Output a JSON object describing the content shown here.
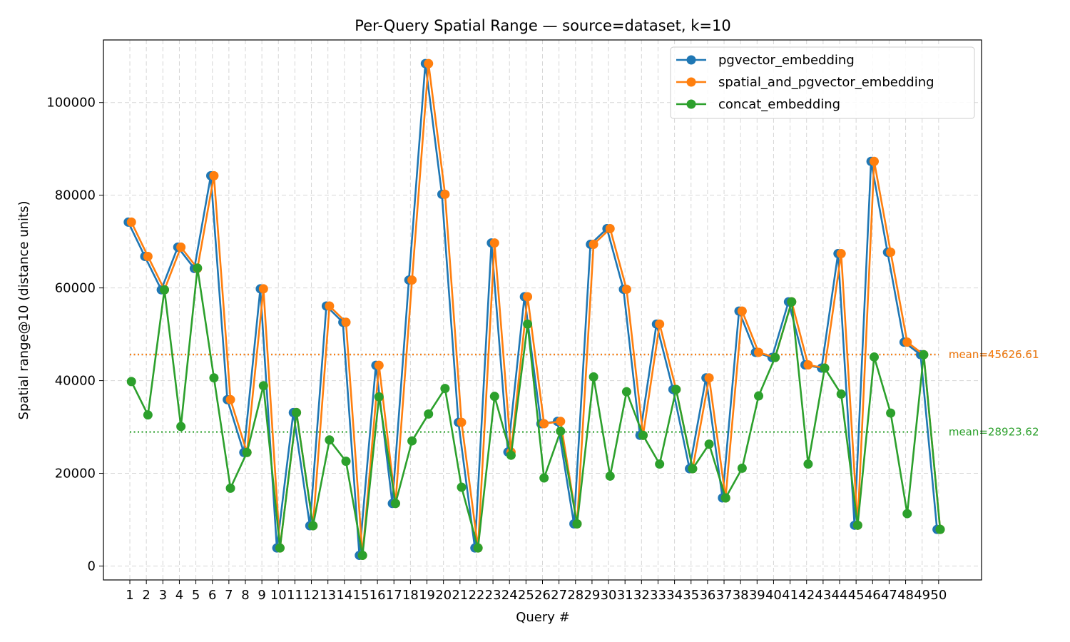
{
  "chart_data": {
    "type": "line",
    "title": "Per-Query Spatial Range — source=dataset, k=10",
    "xlabel": "Query #",
    "ylabel": "Spatial range@10 (distance units)",
    "x": [
      1,
      2,
      3,
      4,
      5,
      6,
      7,
      8,
      9,
      10,
      11,
      12,
      13,
      14,
      15,
      16,
      17,
      18,
      19,
      20,
      21,
      22,
      23,
      24,
      25,
      26,
      27,
      28,
      29,
      30,
      31,
      32,
      33,
      34,
      35,
      36,
      37,
      38,
      39,
      40,
      41,
      42,
      43,
      44,
      45,
      46,
      47,
      48,
      49,
      50
    ],
    "x_tick_labels": [
      "1",
      "2",
      "3",
      "4",
      "5",
      "6",
      "7",
      "8",
      "9",
      "10",
      "11",
      "12",
      "13",
      "14",
      "15",
      "16",
      "17",
      "18",
      "19",
      "20",
      "21",
      "22",
      "23",
      "24",
      "25",
      "26",
      "27",
      "28",
      "29",
      "30",
      "31",
      "32",
      "33",
      "34",
      "35",
      "36",
      "37",
      "38",
      "39",
      "40",
      "41",
      "42",
      "43",
      "44",
      "45",
      "46",
      "47",
      "48",
      "49",
      "50"
    ],
    "xlim": [
      -0.6,
      52.6
    ],
    "ylim": [
      -3000,
      113500
    ],
    "y_ticks": [
      0,
      20000,
      40000,
      60000,
      80000,
      100000
    ],
    "y_tick_labels": [
      "0",
      "20000",
      "40000",
      "60000",
      "80000",
      "100000"
    ],
    "grid": true,
    "legend_position": "top-right",
    "series": [
      {
        "name": "pgvector_embedding",
        "color": "#1f77b4",
        "values": [
          74200,
          66800,
          59600,
          68800,
          64200,
          84200,
          35900,
          24500,
          59800,
          3900,
          33100,
          8700,
          56100,
          52600,
          2300,
          43300,
          13500,
          61700,
          108400,
          80200,
          31000,
          3900,
          69700,
          24600,
          58100,
          30700,
          31200,
          9100,
          69400,
          72800,
          59700,
          28200,
          52200,
          38100,
          21000,
          40600,
          14700,
          55000,
          46100,
          45000,
          57000,
          43400,
          42700,
          67400,
          8800,
          87300,
          67700,
          48300,
          45600,
          7900
        ]
      },
      {
        "name": "spatial_and_pgvector_embedding",
        "color": "#ff7f0e",
        "values": [
          74200,
          66800,
          59600,
          68800,
          64200,
          84200,
          35900,
          24500,
          59800,
          3900,
          33100,
          8700,
          56100,
          52600,
          2300,
          43300,
          13500,
          61700,
          108400,
          80200,
          31000,
          3900,
          69700,
          24600,
          58100,
          30700,
          31200,
          9100,
          69400,
          72800,
          59700,
          28200,
          52200,
          38100,
          21000,
          40600,
          14700,
          55000,
          46100,
          45000,
          57000,
          43400,
          42700,
          67400,
          8800,
          87300,
          67700,
          48300,
          45600,
          7900
        ]
      },
      {
        "name": "concat_embedding",
        "color": "#2ca02c",
        "values": [
          39800,
          32600,
          59600,
          30100,
          64300,
          40600,
          16800,
          24500,
          38900,
          3900,
          33100,
          8700,
          27200,
          22600,
          2300,
          36500,
          13500,
          27000,
          32800,
          38300,
          17000,
          3900,
          36600,
          23900,
          52200,
          19000,
          29100,
          9100,
          40800,
          19400,
          37600,
          28200,
          22000,
          38100,
          21000,
          26300,
          14700,
          21100,
          36700,
          45000,
          57000,
          22000,
          42700,
          37100,
          8800,
          45100,
          33000,
          11300,
          45600,
          7900
        ]
      }
    ],
    "mean_lines": [
      {
        "series": "pgvector_embedding",
        "value": 45626.61,
        "color": "#1f77b4",
        "label": "mean=45626.61"
      },
      {
        "series": "spatial_and_pgvector_embedding",
        "value": 45626.61,
        "color": "#ff7f0e",
        "label": "mean=45626.61"
      },
      {
        "series": "concat_embedding",
        "value": 28923.62,
        "color": "#2ca02c",
        "label": "mean=28923.62"
      }
    ]
  }
}
